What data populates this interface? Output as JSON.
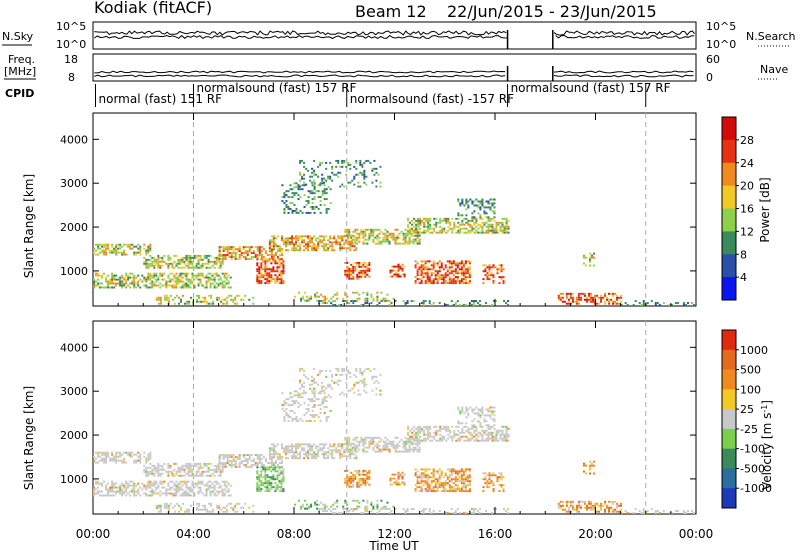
{
  "chart_data": {
    "type": "heatmap",
    "title": "Kodiak (fitACF)",
    "beam": "Beam 12",
    "date_range": "22/Jun/2015 - 23/Jun/2015",
    "xlabel": "Time UT",
    "x_ticks": [
      "00:00",
      "04:00",
      "08:00",
      "12:00",
      "16:00",
      "20:00",
      "00:00"
    ],
    "x_range_hours": [
      0,
      24
    ],
    "y_range_km": [
      200,
      4600
    ],
    "grid_minor_x": true,
    "top_panels": {
      "nsky_label": "N.Sky",
      "nsky_ticks": [
        "10^5",
        "10^0"
      ],
      "nsearch_label": "N.Search",
      "nsearch_ticks": [
        "10^5",
        "10^0"
      ],
      "freq_label": "Freq.",
      "freq_unit": "[MHz]",
      "freq_ticks": [
        "18",
        "8"
      ],
      "nave_label": "Nave",
      "nave_ticks": [
        "60",
        "0"
      ],
      "cpid_label": "CPID",
      "data_gap_hours": [
        16.5,
        18.3
      ]
    },
    "cpid_segments": [
      {
        "label": "normal (fast) 151 RF",
        "start": 0.1,
        "end": 4.0
      },
      {
        "label": "normalsound (fast) 157 RF",
        "start": 4.0,
        "end": 10.1
      },
      {
        "label": "normalsound (fast) -157 RF",
        "start": 10.1,
        "end": 16.5
      },
      {
        "label": "normalsound (fast) 157 RF",
        "start": 16.5,
        "end": 22.0
      }
    ],
    "dashed_time_markers_hours": [
      4.0,
      10.1,
      22.0
    ],
    "power_panel": {
      "ylabel": "Slant Range [km]",
      "y_ticks": [
        1000,
        2000,
        3000,
        4000
      ],
      "colorbar_label": "Power [dB]",
      "colorbar_ticks": [
        "4",
        "8",
        "12",
        "16",
        "20",
        "24",
        "28"
      ],
      "colors": [
        "#0a14f0",
        "#2a4fa8",
        "#3a8a5c",
        "#8ed04a",
        "#f2c825",
        "#f08a1e",
        "#e63212",
        "#d40a0a"
      ]
    },
    "velocity_panel": {
      "ylabel": "Slant Range [km]",
      "y_ticks": [
        1000,
        2000,
        3000,
        4000
      ],
      "colorbar_label": "Velocity [m s",
      "colorbar_unit_exp": "-1",
      "colorbar_ticks": [
        "1000",
        "500",
        "100",
        "25",
        "-25",
        "-100",
        "-500",
        "-1000"
      ],
      "colors": [
        "#1c3ab8",
        "#2a6fa0",
        "#3a8a5c",
        "#7ad04a",
        "#c8c8c8",
        "#f2c825",
        "#f08a1e",
        "#e66a1e",
        "#e02a10"
      ]
    },
    "scatter_regions": [
      {
        "t0": 0.0,
        "t1": 2.3,
        "r0": 1350,
        "r1": 1600,
        "power": "med",
        "velocity": "gray",
        "density": 0.55
      },
      {
        "t0": 2.0,
        "t1": 5.2,
        "r0": 1050,
        "r1": 1350,
        "power": "med",
        "velocity": "gray",
        "density": 0.6
      },
      {
        "t0": 5.0,
        "t1": 7.5,
        "r0": 1250,
        "r1": 1550,
        "power": "high",
        "velocity": "gray",
        "density": 0.55
      },
      {
        "t0": 7.0,
        "t1": 10.5,
        "r0": 1450,
        "r1": 1800,
        "power": "high",
        "velocity": "gray",
        "density": 0.6
      },
      {
        "t0": 10.0,
        "t1": 13.0,
        "r0": 1600,
        "r1": 1950,
        "power": "med",
        "velocity": "gray",
        "density": 0.6
      },
      {
        "t0": 12.5,
        "t1": 16.5,
        "r0": 1850,
        "r1": 2200,
        "power": "med",
        "velocity": "gray",
        "density": 0.55
      },
      {
        "t0": 14.5,
        "t1": 16.0,
        "r0": 2200,
        "r1": 2650,
        "power": "low",
        "velocity": "gray",
        "density": 0.35
      },
      {
        "t0": 7.5,
        "t1": 9.5,
        "r0": 2300,
        "r1": 3000,
        "power": "low",
        "velocity": "gray",
        "density": 0.3
      },
      {
        "t0": 8.2,
        "t1": 11.5,
        "r0": 2900,
        "r1": 3500,
        "power": "low",
        "velocity": "gray",
        "density": 0.2
      },
      {
        "t0": 0.0,
        "t1": 5.5,
        "r0": 600,
        "r1": 950,
        "power": "med",
        "velocity": "gray",
        "density": 0.55
      },
      {
        "t0": 2.5,
        "t1": 6.5,
        "r0": 230,
        "r1": 450,
        "power": "med",
        "velocity": "gray",
        "density": 0.35
      },
      {
        "t0": 6.5,
        "t1": 7.6,
        "r0": 700,
        "r1": 1250,
        "power": "hot",
        "velocity": "green",
        "density": 0.7
      },
      {
        "t0": 10.0,
        "t1": 11.0,
        "r0": 800,
        "r1": 1200,
        "power": "hot",
        "velocity": "orange",
        "density": 0.6
      },
      {
        "t0": 11.8,
        "t1": 12.4,
        "r0": 850,
        "r1": 1150,
        "power": "hot",
        "velocity": "orange",
        "density": 0.5
      },
      {
        "t0": 12.8,
        "t1": 15.0,
        "r0": 700,
        "r1": 1200,
        "power": "hot",
        "velocity": "orange",
        "density": 0.6
      },
      {
        "t0": 15.5,
        "t1": 16.3,
        "r0": 700,
        "r1": 1150,
        "power": "hot",
        "velocity": "orange",
        "density": 0.4
      },
      {
        "t0": 8.0,
        "t1": 12.0,
        "r0": 300,
        "r1": 500,
        "power": "med",
        "velocity": "green",
        "density": 0.25
      },
      {
        "t0": 8.8,
        "t1": 16.5,
        "r0": 200,
        "r1": 330,
        "power": "low",
        "velocity": "gray",
        "density": 0.3
      },
      {
        "t0": 18.5,
        "t1": 21.0,
        "r0": 230,
        "r1": 500,
        "power": "hot",
        "velocity": "orange",
        "density": 0.5
      },
      {
        "t0": 21.0,
        "t1": 24.0,
        "r0": 200,
        "r1": 300,
        "power": "low",
        "velocity": "gray",
        "density": 0.3
      },
      {
        "t0": 19.5,
        "t1": 19.9,
        "r0": 1100,
        "r1": 1400,
        "power": "med",
        "velocity": "orange",
        "density": 0.4
      }
    ]
  }
}
